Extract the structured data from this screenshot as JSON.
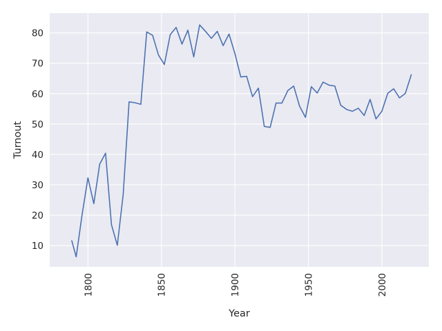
{
  "chart_data": {
    "type": "line",
    "title": "",
    "xlabel": "Year",
    "ylabel": "Turnout",
    "xlim": [
      1774,
      2032
    ],
    "ylim": [
      3,
      86.5
    ],
    "xticks": [
      1800,
      1850,
      1900,
      1950,
      2000
    ],
    "yticks": [
      10,
      20,
      30,
      40,
      50,
      60,
      70,
      80
    ],
    "grid": true,
    "background_color": "#eaeaf2",
    "series": [
      {
        "color": "#4c72b0",
        "x": [
          1789,
          1792,
          1796,
          1800,
          1804,
          1808,
          1812,
          1816,
          1820,
          1824,
          1828,
          1832,
          1836,
          1840,
          1844,
          1848,
          1852,
          1856,
          1860,
          1864,
          1868,
          1872,
          1876,
          1880,
          1884,
          1888,
          1892,
          1896,
          1900,
          1904,
          1908,
          1912,
          1916,
          1920,
          1924,
          1928,
          1932,
          1936,
          1940,
          1944,
          1948,
          1952,
          1956,
          1960,
          1964,
          1968,
          1972,
          1976,
          1980,
          1984,
          1988,
          1992,
          1996,
          2000,
          2004,
          2008,
          2012,
          2016,
          2020
        ],
        "values": [
          11.6,
          6.3,
          20.1,
          32.3,
          23.8,
          36.8,
          40.4,
          16.9,
          10.1,
          26.9,
          57.3,
          57.0,
          56.5,
          80.3,
          79.2,
          72.7,
          69.6,
          79.4,
          81.8,
          76.3,
          80.9,
          72.1,
          82.6,
          80.5,
          78.2,
          80.5,
          75.8,
          79.6,
          73.2,
          65.5,
          65.7,
          59.0,
          61.8,
          49.2,
          48.9,
          56.9,
          56.9,
          61.0,
          62.5,
          55.9,
          52.2,
          62.3,
          60.2,
          63.8,
          62.8,
          62.5,
          56.2,
          54.8,
          54.2,
          55.2,
          52.8,
          58.1,
          51.7,
          54.2,
          60.1,
          61.6,
          58.6,
          60.1,
          66.2
        ]
      }
    ]
  }
}
